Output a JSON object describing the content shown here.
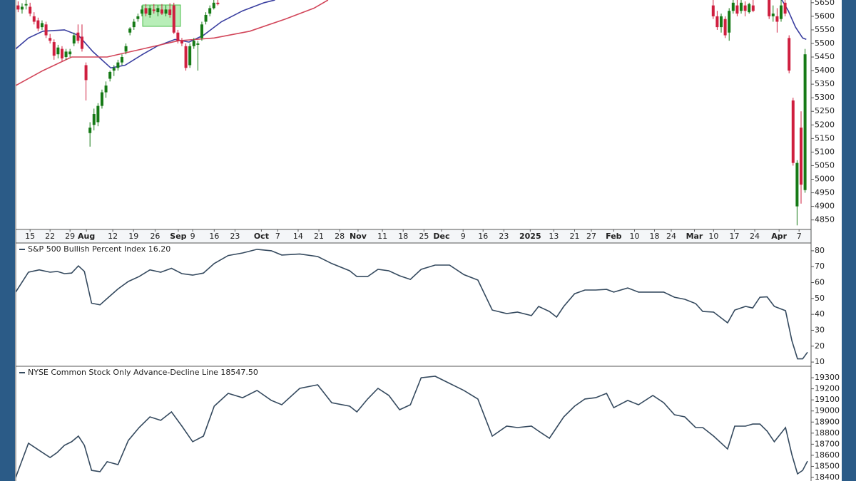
{
  "chart_data": [
    {
      "type": "candlestick",
      "x": [
        -3,
        -2,
        -1,
        0,
        1,
        2,
        3,
        4,
        5,
        6,
        7,
        8,
        9,
        10,
        11,
        12,
        13,
        14,
        15,
        16,
        17,
        18,
        19,
        20,
        21,
        22,
        23,
        24,
        25,
        26,
        27,
        28,
        29,
        30,
        31,
        32,
        33,
        34,
        35,
        36,
        37,
        38,
        39,
        40,
        41,
        42,
        43,
        44,
        45,
        46,
        47,
        171,
        172,
        173,
        174,
        175,
        176,
        177,
        178,
        179,
        180,
        181,
        185,
        186,
        187,
        188,
        189,
        190,
        191,
        192,
        193,
        194
      ],
      "open": [
        5640,
        5625,
        5640,
        5635,
        5600,
        5585,
        5560,
        5570,
        5520,
        5505,
        5460,
        5480,
        5450,
        5460,
        5500,
        5540,
        5525,
        5420,
        5170,
        5200,
        5210,
        5270,
        5320,
        5370,
        5400,
        5410,
        5430,
        5470,
        5540,
        5560,
        5590,
        5610,
        5630,
        5605,
        5625,
        5615,
        5625,
        5610,
        5625,
        5640,
        5540,
        5510,
        5490,
        5420,
        5490,
        5495,
        5520,
        5580,
        5610,
        5630,
        5650,
        5640,
        5600,
        5560,
        5590,
        5540,
        5620,
        5640,
        5620,
        5640,
        5615,
        5640,
        5660,
        5600,
        5600,
        5590,
        5650,
        5520,
        5290,
        4900,
        5190,
        4960
      ],
      "high": [
        5655,
        5648,
        5660,
        5650,
        5615,
        5595,
        5585,
        5580,
        5535,
        5515,
        5495,
        5490,
        5480,
        5480,
        5540,
        5570,
        5570,
        5430,
        5210,
        5260,
        5280,
        5330,
        5360,
        5400,
        5420,
        5440,
        5460,
        5500,
        5560,
        5590,
        5610,
        5640,
        5645,
        5640,
        5645,
        5640,
        5645,
        5640,
        5648,
        5650,
        5550,
        5520,
        5500,
        5500,
        5520,
        5510,
        5580,
        5615,
        5640,
        5660,
        5660,
        5660,
        5620,
        5610,
        5600,
        5630,
        5660,
        5660,
        5660,
        5655,
        5650,
        5660,
        5665,
        5640,
        5630,
        5660,
        5660,
        5530,
        5300,
        5070,
        5250,
        5480
      ],
      "low": [
        5615,
        5610,
        5625,
        5600,
        5570,
        5545,
        5550,
        5520,
        5500,
        5440,
        5445,
        5435,
        5440,
        5450,
        5490,
        5500,
        5470,
        5290,
        5120,
        5180,
        5195,
        5260,
        5300,
        5360,
        5380,
        5400,
        5420,
        5460,
        5530,
        5550,
        5580,
        5600,
        5600,
        5595,
        5610,
        5600,
        5605,
        5600,
        5595,
        5535,
        5500,
        5490,
        5400,
        5410,
        5480,
        5400,
        5510,
        5570,
        5600,
        5625,
        5640,
        5590,
        5550,
        5540,
        5520,
        5510,
        5610,
        5600,
        5610,
        5600,
        5610,
        5615,
        5590,
        5580,
        5540,
        5580,
        5600,
        5390,
        5050,
        4830,
        4910,
        4950
      ],
      "close": [
        5625,
        5635,
        5645,
        5610,
        5580,
        5555,
        5575,
        5530,
        5510,
        5455,
        5485,
        5445,
        5470,
        5470,
        5530,
        5510,
        5480,
        5365,
        5190,
        5240,
        5270,
        5320,
        5345,
        5395,
        5410,
        5430,
        5450,
        5490,
        5555,
        5580,
        5600,
        5625,
        5610,
        5630,
        5620,
        5630,
        5610,
        5625,
        5605,
        5540,
        5510,
        5500,
        5410,
        5490,
        5510,
        5500,
        5570,
        5605,
        5630,
        5650,
        5645,
        5600,
        5560,
        5600,
        5530,
        5620,
        5650,
        5610,
        5650,
        5620,
        5645,
        5620,
        5600,
        5610,
        5580,
        5640,
        5610,
        5400,
        5060,
        5060,
        4980,
        5460
      ],
      "up_color": "#167a16",
      "down_color": "#cf1f3f",
      "series": [
        {
          "color": "#3a3fa0",
          "x": [
            -3.6,
            -0.4,
            3.2,
            8.6,
            12.1,
            15.7,
            20.2,
            23.8,
            28.2,
            31.8,
            36.3,
            39.8,
            43.4,
            47.9,
            53.2,
            58.6,
            61.3,
            120,
            188,
            189.8,
            191.6,
            193.4,
            194.3
          ],
          "values": [
            5480,
            5520,
            5545,
            5550,
            5530,
            5470,
            5410,
            5420,
            5460,
            5490,
            5515,
            5505,
            5530,
            5580,
            5620,
            5650,
            5660,
            null,
            5665,
            5620,
            5560,
            5520,
            5515
          ]
        },
        {
          "color": "#d2465a",
          "x": [
            -3.6,
            3.2,
            10.4,
            19.3,
            28.2,
            37.1,
            46.1,
            55,
            63.9,
            71.1,
            74.6
          ],
          "values": [
            5345,
            5400,
            5450,
            5450,
            5480,
            5510,
            5520,
            5545,
            5590,
            5630,
            5660
          ]
        }
      ],
      "xlim": [
        -3.6,
        195.5
      ],
      "xticks": [
        {
          "value": 0,
          "label": "15"
        },
        {
          "value": 5,
          "label": "22"
        },
        {
          "value": 10,
          "label": "29"
        },
        {
          "value": 14.1,
          "label": "Aug",
          "bold": true
        },
        {
          "value": 20.7,
          "label": "12"
        },
        {
          "value": 25.9,
          "label": "19"
        },
        {
          "value": 31.3,
          "label": "26"
        },
        {
          "value": 37.1,
          "label": "Sep",
          "bold": true
        },
        {
          "value": 40.7,
          "label": "9"
        },
        {
          "value": 46.1,
          "label": "16"
        },
        {
          "value": 51.3,
          "label": "23"
        },
        {
          "value": 57.9,
          "label": "Oct",
          "bold": true
        },
        {
          "value": 62,
          "label": "7"
        },
        {
          "value": 67.1,
          "label": "14"
        },
        {
          "value": 72.3,
          "label": "21"
        },
        {
          "value": 77.5,
          "label": "28"
        },
        {
          "value": 82.1,
          "label": "Nov",
          "bold": true
        },
        {
          "value": 88.2,
          "label": "11"
        },
        {
          "value": 93.4,
          "label": "18"
        },
        {
          "value": 98.6,
          "label": "25"
        },
        {
          "value": 103,
          "label": "Dec",
          "bold": true
        },
        {
          "value": 108.4,
          "label": "9"
        },
        {
          "value": 113.4,
          "label": "16"
        },
        {
          "value": 118.6,
          "label": "23"
        },
        {
          "value": 125.2,
          "label": "2025",
          "bold": true
        },
        {
          "value": 131.1,
          "label": "13"
        },
        {
          "value": 136.3,
          "label": "21"
        },
        {
          "value": 140.5,
          "label": "27"
        },
        {
          "value": 146.1,
          "label": "Feb",
          "bold": true
        },
        {
          "value": 151.3,
          "label": "10"
        },
        {
          "value": 156.3,
          "label": "18"
        },
        {
          "value": 160.5,
          "label": "24"
        },
        {
          "value": 166.3,
          "label": "Mar",
          "bold": true
        },
        {
          "value": 171.1,
          "label": "10"
        },
        {
          "value": 176.3,
          "label": "17"
        },
        {
          "value": 181.4,
          "label": "24"
        },
        {
          "value": 187.5,
          "label": "Apr",
          "bold": true
        },
        {
          "value": 192.5,
          "label": "7"
        }
      ],
      "ylim": [
        4815,
        5660
      ],
      "yticks": [
        5650,
        5600,
        5550,
        5500,
        5450,
        5400,
        5350,
        5300,
        5250,
        5200,
        5150,
        5100,
        5050,
        5000,
        4950,
        4900,
        4850
      ]
    },
    {
      "type": "line",
      "title": "S&P 500 Bullish Percent Index 16.20",
      "x": [
        -3.6,
        -0.4,
        2.3,
        5,
        6.8,
        8.6,
        10.4,
        12.1,
        13.6,
        15.4,
        17.5,
        19.3,
        22,
        24.6,
        27.3,
        30,
        32.7,
        35.4,
        38,
        40.7,
        43.4,
        46.1,
        49.6,
        53.2,
        56.8,
        60.4,
        63,
        67.5,
        72,
        75.5,
        80,
        81.8,
        84.5,
        87.1,
        89.8,
        92.5,
        95.2,
        97.9,
        101.4,
        105,
        108.6,
        112.1,
        115.7,
        119.3,
        122,
        125.5,
        127.3,
        130,
        131.8,
        133.6,
        136.3,
        138.9,
        141.6,
        144.3,
        146.1,
        149.6,
        152.3,
        155.9,
        158.6,
        161.3,
        163.9,
        166.6,
        168.4,
        171.1,
        174.6,
        176.4,
        179.1,
        180.9,
        182.7,
        184.5,
        186.3,
        189.1,
        190.7,
        192.1,
        193.4,
        194.6
      ],
      "series": [
        {
          "color": "#34495e",
          "values": [
            54,
            66.5,
            68,
            66.5,
            67,
            65.6,
            66,
            70.5,
            67,
            47,
            46,
            50,
            56,
            60.7,
            63.8,
            68,
            66.5,
            69,
            65.6,
            64.7,
            66,
            72,
            77,
            78.6,
            80.9,
            80,
            77.3,
            78,
            76.4,
            72,
            67.4,
            63.8,
            63.8,
            68.3,
            67.4,
            64.3,
            62,
            68.3,
            71,
            71,
            65,
            61.6,
            42.7,
            40.5,
            41.4,
            39.2,
            45,
            41.8,
            38.3,
            45,
            53,
            55.3,
            55.3,
            55.7,
            54,
            56.6,
            54,
            54,
            54,
            50.8,
            49.5,
            46.8,
            41.8,
            41.4,
            34.7,
            42.7,
            45,
            44,
            50.8,
            51,
            45,
            42.3,
            23.5,
            12,
            12,
            16.2
          ]
        }
      ],
      "xlim": [
        -3.6,
        195.5
      ],
      "ylim": [
        7.8,
        84
      ],
      "yticks": [
        80,
        70,
        60,
        50,
        40,
        30,
        20,
        10
      ]
    },
    {
      "type": "line",
      "title": "NYSE Common Stock Only Advance-Decline Line 18547.50",
      "x": [
        -3.6,
        -0.4,
        2.3,
        5,
        6.8,
        8.6,
        10.4,
        12.1,
        13.6,
        15.4,
        17.5,
        19.3,
        22,
        24.6,
        27.3,
        30,
        32.7,
        35.4,
        38,
        40.7,
        43.4,
        46.1,
        49.6,
        53.2,
        56.8,
        60.4,
        63,
        67.5,
        72,
        75.5,
        80,
        81.8,
        84.5,
        87.1,
        89.8,
        92.5,
        95.2,
        97.9,
        101.4,
        105,
        108.6,
        112.1,
        115.7,
        119.3,
        122,
        125.5,
        127.3,
        130,
        131.8,
        133.6,
        136.3,
        138.9,
        141.6,
        144.3,
        146.1,
        149.6,
        152.3,
        155.9,
        158.6,
        161.3,
        163.9,
        166.6,
        168.4,
        171.1,
        174.6,
        176.4,
        179.1,
        180.9,
        182.7,
        184.5,
        186.3,
        189.1,
        190.7,
        192.1,
        193.4,
        194.6
      ],
      "series": [
        {
          "color": "#34495e",
          "values": [
            18400,
            18709,
            18644,
            18580,
            18625,
            18690,
            18722,
            18773,
            18690,
            18464,
            18452,
            18542,
            18516,
            18734,
            18850,
            18947,
            18915,
            18992,
            18863,
            18722,
            18773,
            19043,
            19159,
            19120,
            19185,
            19095,
            19056,
            19204,
            19236,
            19075,
            19043,
            18992,
            19108,
            19204,
            19140,
            19011,
            19056,
            19300,
            19313,
            19249,
            19185,
            19108,
            18773,
            18863,
            18850,
            18863,
            18818,
            18754,
            18850,
            18947,
            19043,
            19108,
            19120,
            19159,
            19030,
            19095,
            19056,
            19140,
            19075,
            18966,
            18947,
            18850,
            18850,
            18773,
            18657,
            18863,
            18863,
            18882,
            18882,
            18818,
            18722,
            18850,
            18606,
            18432,
            18464,
            18547.5
          ]
        }
      ],
      "xlim": [
        -3.6,
        195.5
      ],
      "ylim": [
        18368,
        19384
      ],
      "yticks": [
        19300,
        19200,
        19100,
        19000,
        18900,
        18800,
        18700,
        18600,
        18500,
        18400
      ]
    }
  ]
}
